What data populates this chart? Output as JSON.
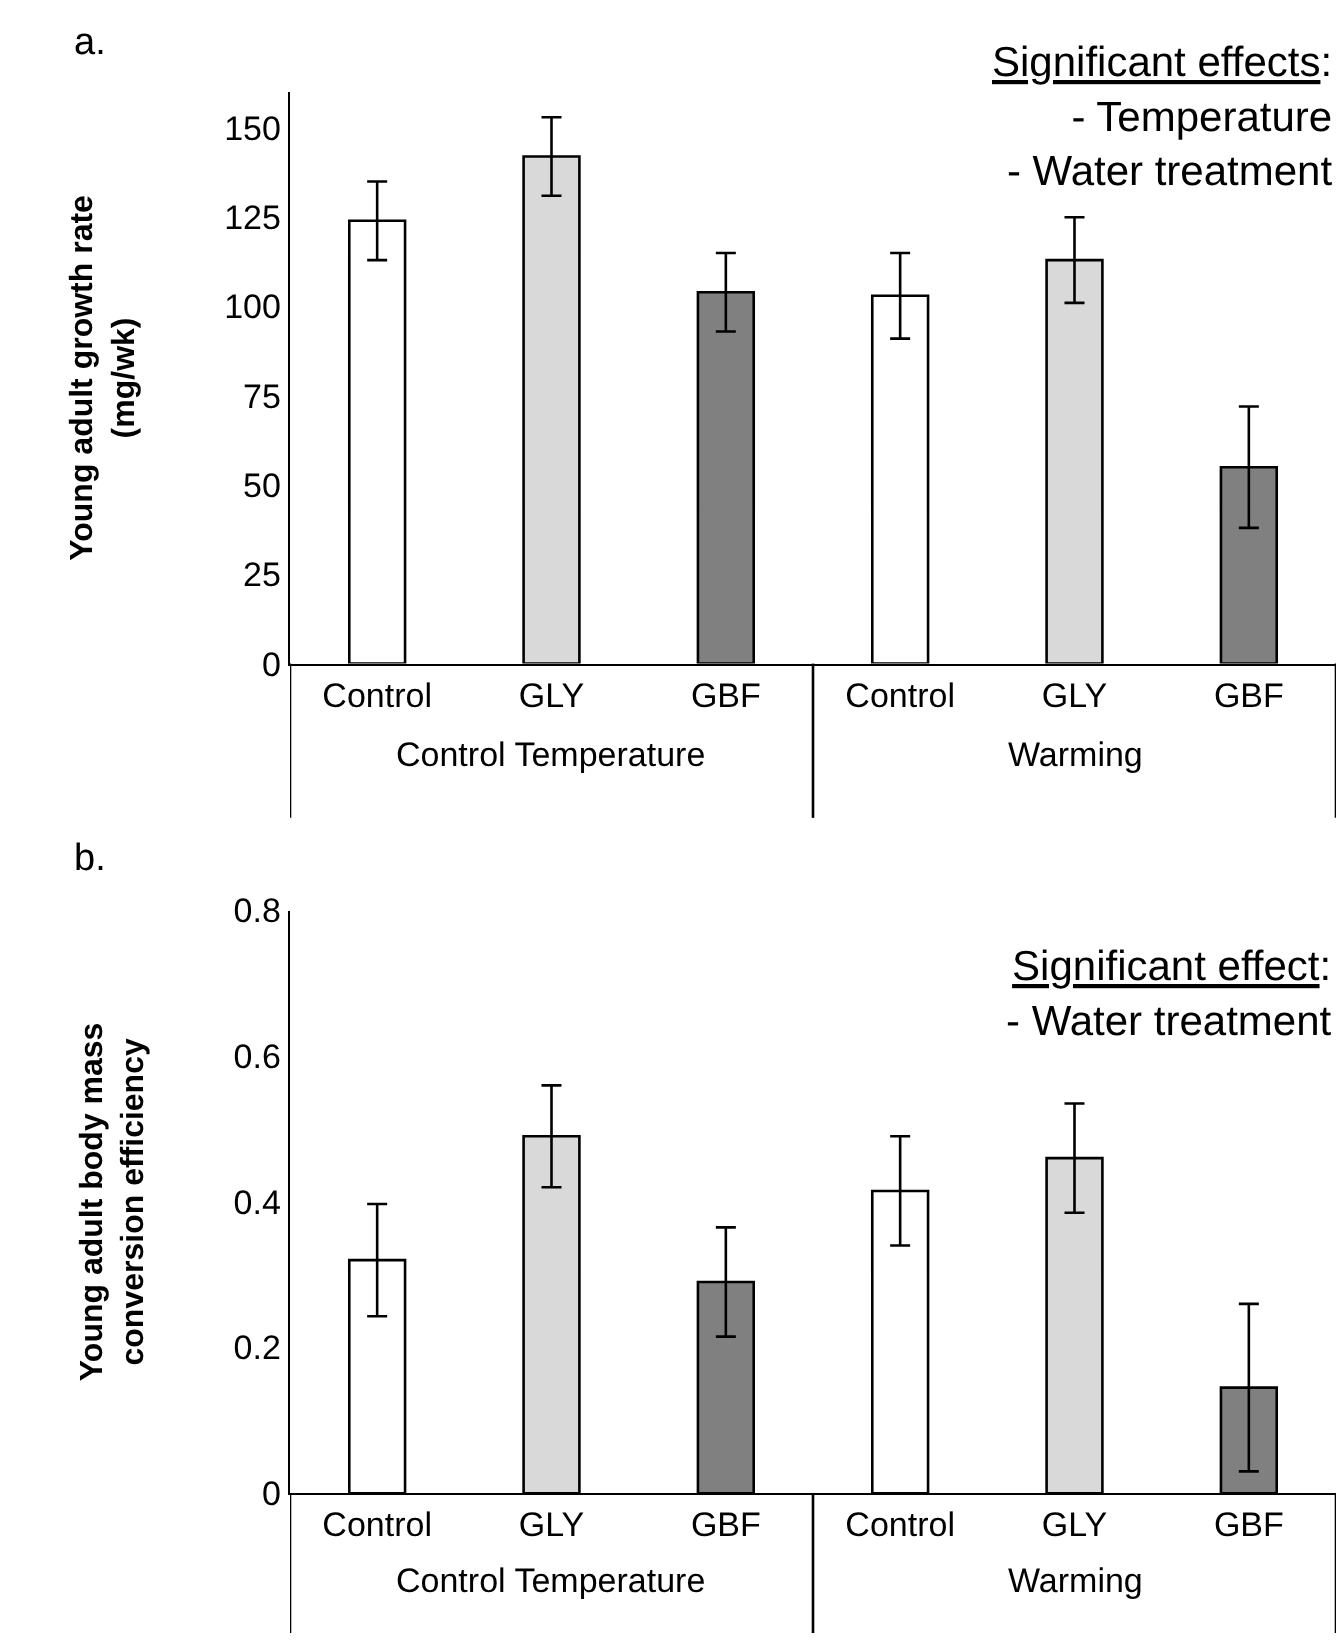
{
  "chart_data": [
    {
      "type": "bar",
      "title": "a.",
      "ylabel": "Young adult growth rate\n(mg/wk)",
      "categories": [
        "Control",
        "GLY",
        "GBF",
        "Control",
        "GLY",
        "GBF"
      ],
      "values": [
        124,
        142,
        104,
        103,
        113,
        55
      ],
      "errors": [
        11,
        11,
        11,
        12,
        12,
        17
      ],
      "colors": [
        "#ffffff",
        "#d9d9d9",
        "#808080",
        "#ffffff",
        "#d9d9d9",
        "#808080"
      ],
      "ylim": [
        0,
        160
      ],
      "yticks": [
        0,
        25,
        50,
        75,
        100,
        125,
        150
      ],
      "annotations": [
        "Control Temperature",
        "Warming",
        "Significant effects:\n- Temperature\n- Water treatment"
      ]
    },
    {
      "type": "bar",
      "title": "b.",
      "ylabel": "Young adult body mass\nconversion efficiency",
      "categories": [
        "Control",
        "GLY",
        "GBF",
        "Control",
        "GLY",
        "GBF"
      ],
      "values": [
        0.32,
        0.49,
        0.29,
        0.415,
        0.46,
        0.145
      ],
      "errors": [
        0.077,
        0.07,
        0.075,
        0.075,
        0.075,
        0.115
      ],
      "colors": [
        "#ffffff",
        "#d9d9d9",
        "#808080",
        "#ffffff",
        "#d9d9d9",
        "#808080"
      ],
      "ylim": [
        0,
        0.8
      ],
      "yticks": [
        0,
        0.2,
        0.4,
        0.6,
        0.8
      ],
      "annotations": [
        "Control Temperature",
        "Warming",
        "Significant effect:\n- Water treatment"
      ]
    }
  ]
}
